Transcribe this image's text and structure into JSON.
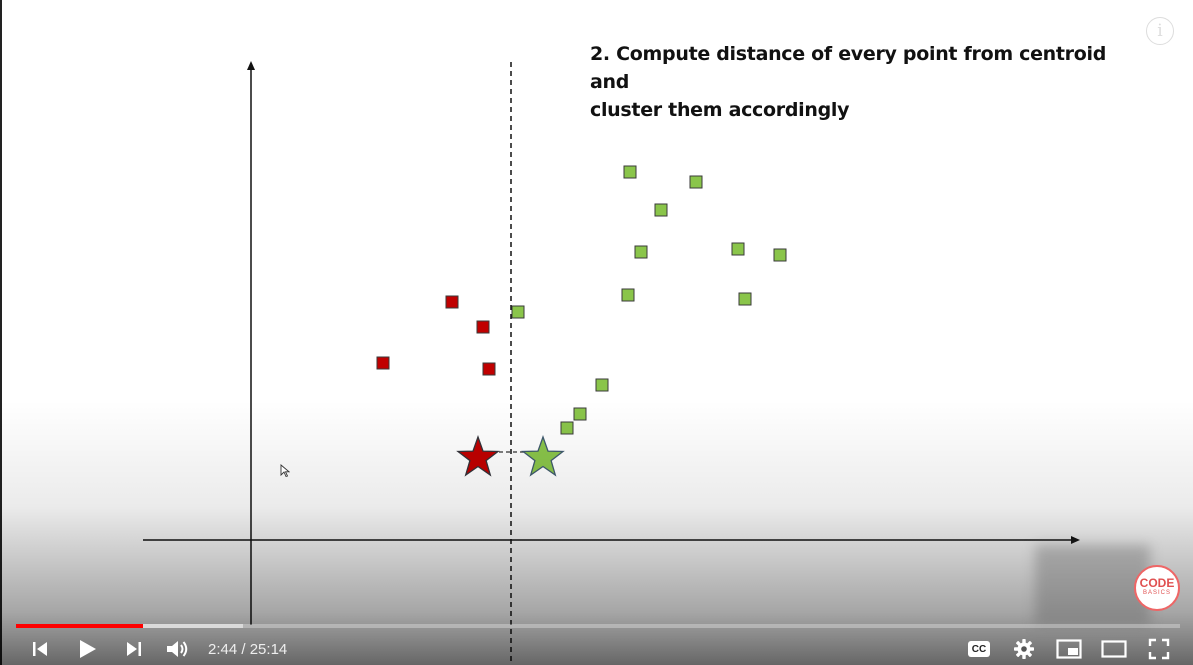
{
  "slide": {
    "title_line1": "2. Compute distance of every point from centroid and",
    "title_line2": "cluster them accordingly"
  },
  "chart_data": {
    "type": "scatter",
    "title": "2. Compute distance of every point from centroid and cluster them accordingly",
    "xlabel": "",
    "ylabel": "",
    "grid": false,
    "series": [
      {
        "color": "#c00000",
        "marker": "square",
        "points": [
          [
            452,
            302
          ],
          [
            483,
            327
          ],
          [
            383,
            363
          ],
          [
            489,
            369
          ]
        ]
      },
      {
        "color": "#8ac54a",
        "marker": "square",
        "points": [
          [
            630,
            172
          ],
          [
            696,
            182
          ],
          [
            661,
            210
          ],
          [
            641,
            252
          ],
          [
            738,
            249
          ],
          [
            780,
            255
          ],
          [
            628,
            295
          ],
          [
            745,
            299
          ],
          [
            518,
            312
          ],
          [
            602,
            385
          ],
          [
            580,
            414
          ],
          [
            567,
            428
          ]
        ]
      }
    ],
    "centroids": [
      {
        "color": "#c00000",
        "marker": "star",
        "point": [
          478,
          458
        ]
      },
      {
        "color": "#8ac54a",
        "marker": "star",
        "point": [
          543,
          458
        ]
      }
    ],
    "dashed_boundary_x": 511,
    "dashed_link": [
      [
        478,
        452
      ],
      [
        543,
        452
      ]
    ]
  },
  "player": {
    "current_time": "2:44",
    "separator": " / ",
    "duration": "25:14",
    "played_fraction": 0.109,
    "buffered_fraction": 0.195,
    "logo_top": "CODE",
    "logo_bottom": "BASICS",
    "info_glyph": "i",
    "icons": {
      "prev": "skip-previous-icon",
      "play": "play-icon",
      "next": "skip-next-icon",
      "volume": "volume-icon",
      "cc": "closed-captions-icon",
      "settings": "gear-icon",
      "miniplayer": "miniplayer-icon",
      "theater": "theater-mode-icon",
      "fullscreen": "fullscreen-icon"
    },
    "cc_label": "CC",
    "colors": {
      "progress": "#ff0000",
      "red_cluster": "#c00000",
      "green_cluster": "#8ac54a"
    }
  }
}
